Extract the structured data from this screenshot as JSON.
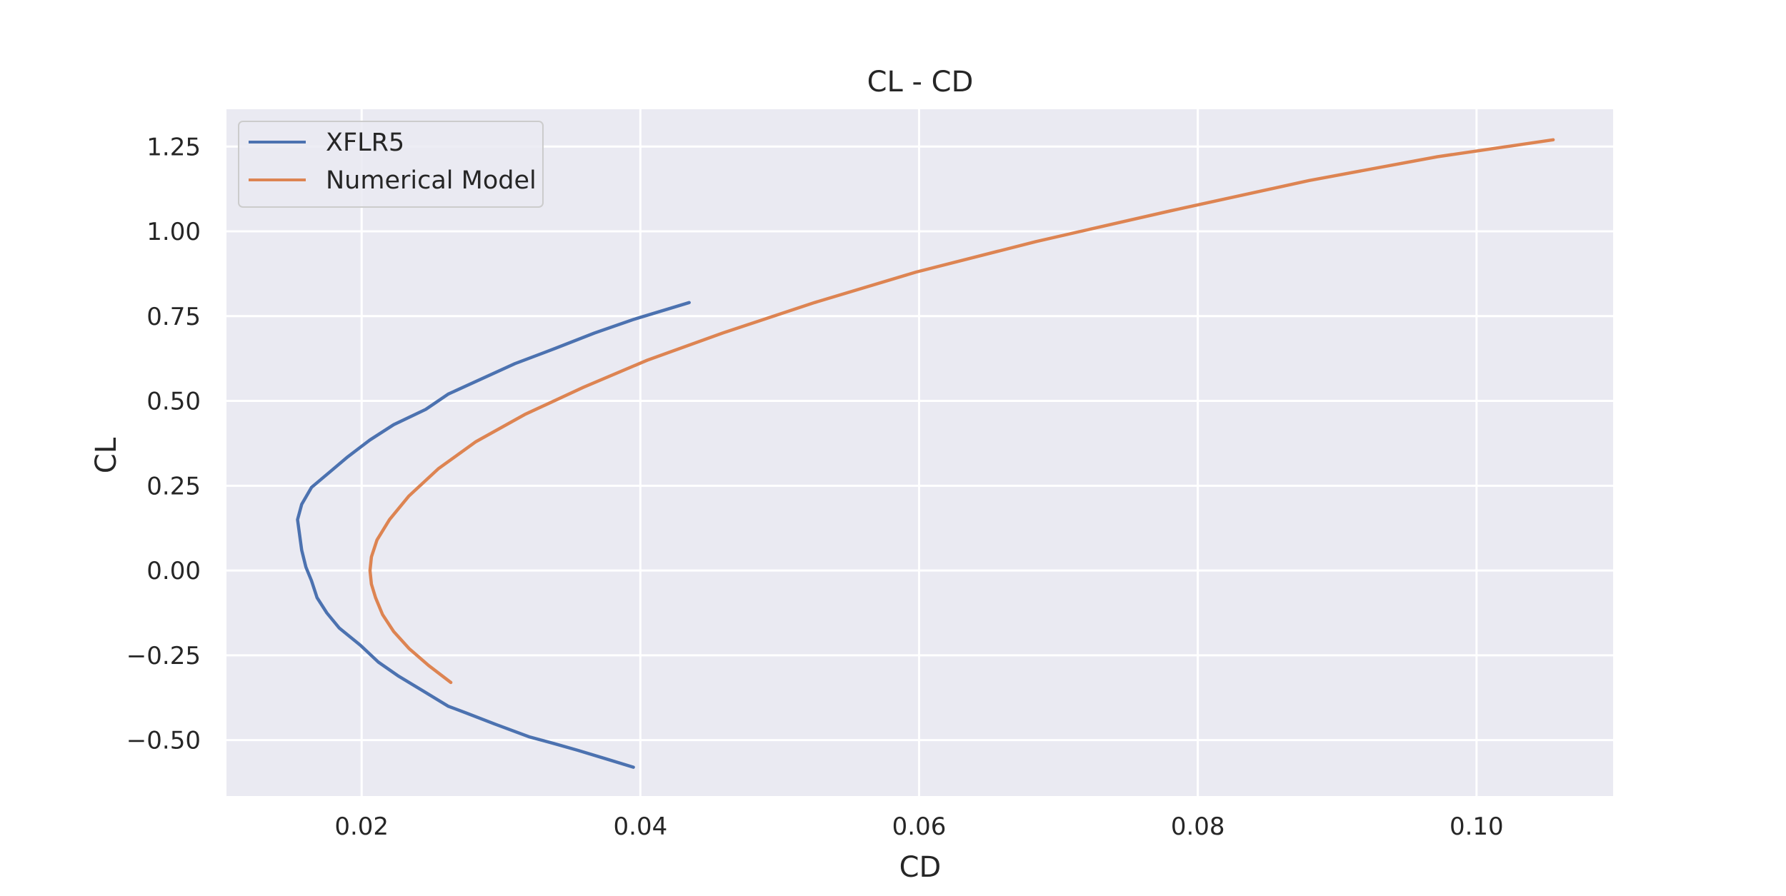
{
  "chart_data": {
    "type": "line",
    "title": "CL - CD",
    "xlabel": "CD",
    "ylabel": "CL",
    "xlim": [
      0.0103,
      0.1098
    ],
    "ylim": [
      -0.665,
      1.36
    ],
    "xticks": [
      0.02,
      0.04,
      0.06,
      0.08,
      0.1
    ],
    "xtick_labels": [
      "0.02",
      "0.04",
      "0.06",
      "0.08",
      "0.10"
    ],
    "yticks": [
      -0.5,
      -0.25,
      0.0,
      0.25,
      0.5,
      0.75,
      1.0,
      1.25
    ],
    "ytick_labels": [
      "−0.50",
      "−0.25",
      "0.00",
      "0.25",
      "0.50",
      "0.75",
      "1.00",
      "1.25"
    ],
    "grid": true,
    "legend_position": "upper-left",
    "background": "#eaeaf2",
    "grid_color": "#ffffff",
    "series": [
      {
        "name": "XFLR5",
        "color": "#4c72b0",
        "x": [
          0.0395,
          0.0375,
          0.0355,
          0.0338,
          0.032,
          0.0297,
          0.0275,
          0.0262,
          0.0244,
          0.0226,
          0.0212,
          0.0199,
          0.0184,
          0.0175,
          0.0168,
          0.0164,
          0.016,
          0.0157,
          0.0154,
          0.0157,
          0.0164,
          0.0177,
          0.019,
          0.0206,
          0.0223,
          0.0246,
          0.0262,
          0.0286,
          0.031,
          0.0339,
          0.0367,
          0.0395,
          0.0419,
          0.0435
        ],
        "y": [
          -0.58,
          -0.555,
          -0.53,
          -0.51,
          -0.49,
          -0.455,
          -0.42,
          -0.4,
          -0.355,
          -0.31,
          -0.27,
          -0.22,
          -0.17,
          -0.125,
          -0.08,
          -0.03,
          0.01,
          0.06,
          0.15,
          0.195,
          0.245,
          0.29,
          0.335,
          0.385,
          0.43,
          0.475,
          0.52,
          0.565,
          0.61,
          0.655,
          0.7,
          0.74,
          0.77,
          0.79
        ]
      },
      {
        "name": "Numerical Model",
        "color": "#dd8452",
        "x": [
          0.0264,
          0.0248,
          0.0234,
          0.0223,
          0.0215,
          0.021,
          0.0207,
          0.0206,
          0.0207,
          0.0211,
          0.022,
          0.0234,
          0.0255,
          0.0282,
          0.0317,
          0.0359,
          0.0405,
          0.0459,
          0.0525,
          0.0598,
          0.0684,
          0.078,
          0.088,
          0.0972,
          0.1055
        ],
        "y": [
          -0.33,
          -0.28,
          -0.23,
          -0.18,
          -0.13,
          -0.08,
          -0.04,
          0.0,
          0.04,
          0.09,
          0.15,
          0.22,
          0.3,
          0.38,
          0.46,
          0.54,
          0.62,
          0.7,
          0.79,
          0.88,
          0.97,
          1.06,
          1.15,
          1.22,
          1.27
        ]
      }
    ]
  }
}
